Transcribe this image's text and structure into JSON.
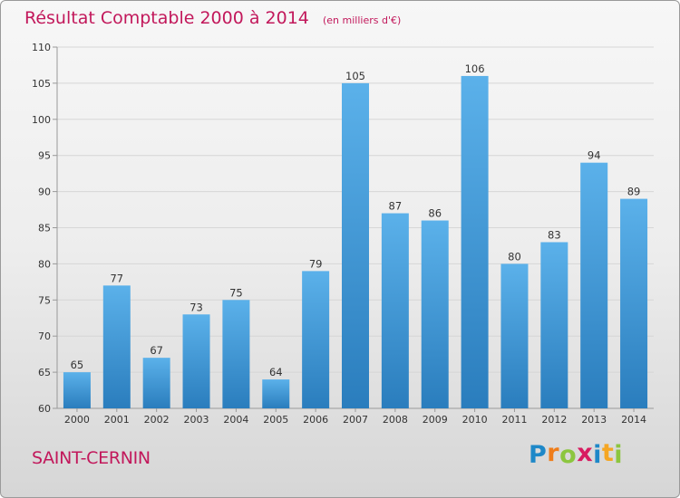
{
  "title": "Résultat Comptable 2000 à 2014",
  "unit": "(en milliers d'€)",
  "place": "SAINT-CERNIN",
  "logo": {
    "letters": [
      "P",
      "r",
      "o",
      "x",
      "i",
      "t",
      "i"
    ],
    "colors": [
      "#1e88c8",
      "#ef7d1a",
      "#8cc63f",
      "#d81b60",
      "#1e88c8",
      "#f5a623",
      "#8cc63f"
    ]
  },
  "colors": {
    "bar_top": "#5bb1ea",
    "bar_bottom": "#2a7dbd",
    "axis": "#999999",
    "grid": "#d6d6d6"
  },
  "chart_data": {
    "type": "bar",
    "title": "Résultat Comptable 2000 à 2014",
    "subtitle": "(en milliers d'€)",
    "categories": [
      "2000",
      "2001",
      "2002",
      "2003",
      "2004",
      "2005",
      "2006",
      "2007",
      "2008",
      "2009",
      "2010",
      "2011",
      "2012",
      "2013",
      "2014"
    ],
    "values": [
      65,
      77,
      67,
      73,
      75,
      64,
      79,
      105,
      87,
      86,
      106,
      80,
      83,
      94,
      89
    ],
    "ylim": [
      60,
      110
    ],
    "yticks": [
      60,
      65,
      70,
      75,
      80,
      85,
      90,
      95,
      100,
      105,
      110
    ],
    "xlabel": "",
    "ylabel": "",
    "grid": true
  }
}
